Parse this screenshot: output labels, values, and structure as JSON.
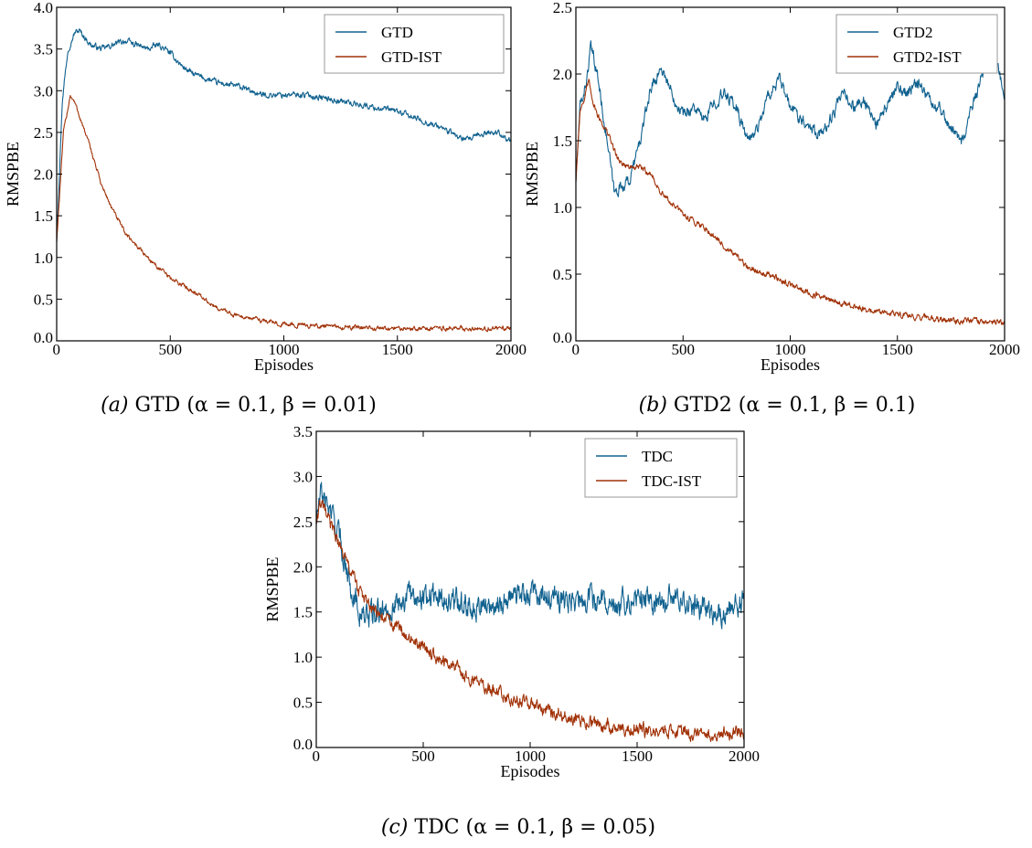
{
  "colors": {
    "blue": "#11628f",
    "orange": "#a13208"
  },
  "captions": [
    {
      "prefix": "(a)",
      "text": "GTD (α = 0.1, β = 0.01)"
    },
    {
      "prefix": "(b)",
      "text": "GTD2 (α = 0.1, β = 0.1)"
    },
    {
      "prefix": "(c)",
      "text": "TDC (α = 0.1, β = 0.05)"
    }
  ],
  "chart_data": [
    {
      "type": "line",
      "xlabel": "Episodes",
      "ylabel": "RMSPBE",
      "xlim": [
        0,
        2000
      ],
      "ylim": [
        0,
        4.0
      ],
      "xticks": [
        0,
        500,
        1000,
        1500,
        2000
      ],
      "yticks": [
        "0.0",
        "0.5",
        "1.0",
        "1.5",
        "2.0",
        "2.5",
        "3.0",
        "3.5",
        "4.0"
      ],
      "legend_position": "top-right",
      "noise": [
        0.04,
        0.03
      ],
      "series": [
        {
          "name": "GTD",
          "color": "#11628f",
          "x": [
            0,
            25,
            50,
            80,
            100,
            150,
            200,
            250,
            300,
            350,
            400,
            450,
            500,
            550,
            600,
            700,
            800,
            900,
            1000,
            1100,
            1200,
            1300,
            1400,
            1500,
            1600,
            1700,
            1800,
            1900,
            1950,
            2000
          ],
          "y": [
            1.2,
            2.9,
            3.5,
            3.7,
            3.72,
            3.55,
            3.5,
            3.55,
            3.6,
            3.55,
            3.5,
            3.55,
            3.45,
            3.3,
            3.2,
            3.1,
            3.05,
            2.95,
            2.95,
            2.95,
            2.9,
            2.85,
            2.8,
            2.75,
            2.65,
            2.55,
            2.4,
            2.5,
            2.5,
            2.38
          ]
        },
        {
          "name": "GTD-IST",
          "color": "#a13208",
          "x": [
            0,
            30,
            60,
            80,
            100,
            150,
            200,
            250,
            300,
            400,
            500,
            600,
            700,
            800,
            900,
            1000,
            1200,
            1400,
            1600,
            1800,
            2000
          ],
          "y": [
            1.2,
            2.5,
            2.95,
            2.85,
            2.7,
            2.3,
            1.85,
            1.55,
            1.3,
            1.0,
            0.75,
            0.6,
            0.4,
            0.3,
            0.25,
            0.2,
            0.17,
            0.15,
            0.15,
            0.15,
            0.15
          ]
        }
      ]
    },
    {
      "type": "line",
      "xlabel": "Episodes",
      "ylabel": "RMSPBE",
      "xlim": [
        0,
        2000
      ],
      "ylim": [
        0,
        2.5
      ],
      "xticks": [
        0,
        500,
        1000,
        1500,
        2000
      ],
      "yticks": [
        "0.0",
        "0.5",
        "1.0",
        "1.5",
        "2.0",
        "2.5"
      ],
      "legend_position": "top-right",
      "noise": [
        0.05,
        0.025
      ],
      "series": [
        {
          "name": "GTD2",
          "color": "#11628f",
          "x": [
            0,
            20,
            50,
            70,
            100,
            150,
            180,
            200,
            250,
            300,
            350,
            400,
            450,
            500,
            550,
            600,
            650,
            700,
            750,
            800,
            850,
            900,
            950,
            1000,
            1100,
            1150,
            1200,
            1250,
            1300,
            1350,
            1400,
            1450,
            1500,
            1550,
            1600,
            1650,
            1700,
            1750,
            1800,
            1850,
            1900,
            1950,
            2000
          ],
          "y": [
            1.2,
            1.75,
            1.95,
            2.2,
            2.0,
            1.45,
            1.1,
            1.15,
            1.2,
            1.5,
            1.9,
            2.05,
            1.85,
            1.7,
            1.75,
            1.65,
            1.8,
            1.85,
            1.75,
            1.5,
            1.6,
            1.85,
            1.95,
            1.75,
            1.6,
            1.55,
            1.7,
            1.85,
            1.75,
            1.8,
            1.6,
            1.75,
            1.9,
            1.85,
            1.95,
            1.8,
            1.75,
            1.6,
            1.5,
            1.75,
            2.0,
            2.15,
            1.85
          ]
        },
        {
          "name": "GTD2-IST",
          "color": "#a13208",
          "x": [
            0,
            20,
            40,
            60,
            80,
            100,
            150,
            200,
            250,
            300,
            350,
            400,
            500,
            600,
            700,
            800,
            900,
            1000,
            1100,
            1200,
            1300,
            1400,
            1500,
            1600,
            1700,
            1800,
            1900,
            2000
          ],
          "y": [
            1.2,
            1.75,
            1.8,
            1.95,
            1.8,
            1.7,
            1.55,
            1.35,
            1.3,
            1.3,
            1.25,
            1.1,
            0.95,
            0.85,
            0.7,
            0.55,
            0.5,
            0.42,
            0.35,
            0.3,
            0.25,
            0.22,
            0.2,
            0.18,
            0.16,
            0.15,
            0.14,
            0.14
          ]
        }
      ]
    },
    {
      "type": "line",
      "xlabel": "Episodes",
      "ylabel": "RMSPBE",
      "xlim": [
        0,
        2000
      ],
      "ylim": [
        0,
        3.5
      ],
      "xticks": [
        0,
        500,
        1000,
        1500,
        2000
      ],
      "yticks": [
        "0.0",
        "0.5",
        "1.0",
        "1.5",
        "2.0",
        "2.5",
        "3.0",
        "3.5"
      ],
      "legend_position": "top-right",
      "noise": [
        0.15,
        0.08
      ],
      "series": [
        {
          "name": "TDC",
          "color": "#11628f",
          "x": [
            0,
            20,
            50,
            100,
            150,
            200,
            250,
            300,
            350,
            400,
            500,
            600,
            700,
            800,
            900,
            1000,
            1100,
            1200,
            1300,
            1400,
            1500,
            1600,
            1700,
            1800,
            1900,
            2000
          ],
          "y": [
            2.5,
            2.8,
            2.7,
            2.4,
            1.9,
            1.5,
            1.45,
            1.5,
            1.55,
            1.65,
            1.7,
            1.65,
            1.6,
            1.55,
            1.65,
            1.7,
            1.65,
            1.6,
            1.65,
            1.6,
            1.65,
            1.6,
            1.65,
            1.55,
            1.5,
            1.6
          ]
        },
        {
          "name": "TDC-IST",
          "color": "#a13208",
          "x": [
            0,
            20,
            50,
            100,
            150,
            200,
            250,
            300,
            400,
            500,
            600,
            700,
            800,
            900,
            1000,
            1100,
            1200,
            1300,
            1400,
            1500,
            1600,
            1700,
            1800,
            1900,
            2000
          ],
          "y": [
            2.5,
            2.7,
            2.55,
            2.3,
            2.0,
            1.75,
            1.55,
            1.45,
            1.3,
            1.1,
            0.95,
            0.8,
            0.65,
            0.55,
            0.47,
            0.4,
            0.33,
            0.27,
            0.22,
            0.2,
            0.18,
            0.17,
            0.16,
            0.16,
            0.16
          ]
        }
      ]
    }
  ]
}
